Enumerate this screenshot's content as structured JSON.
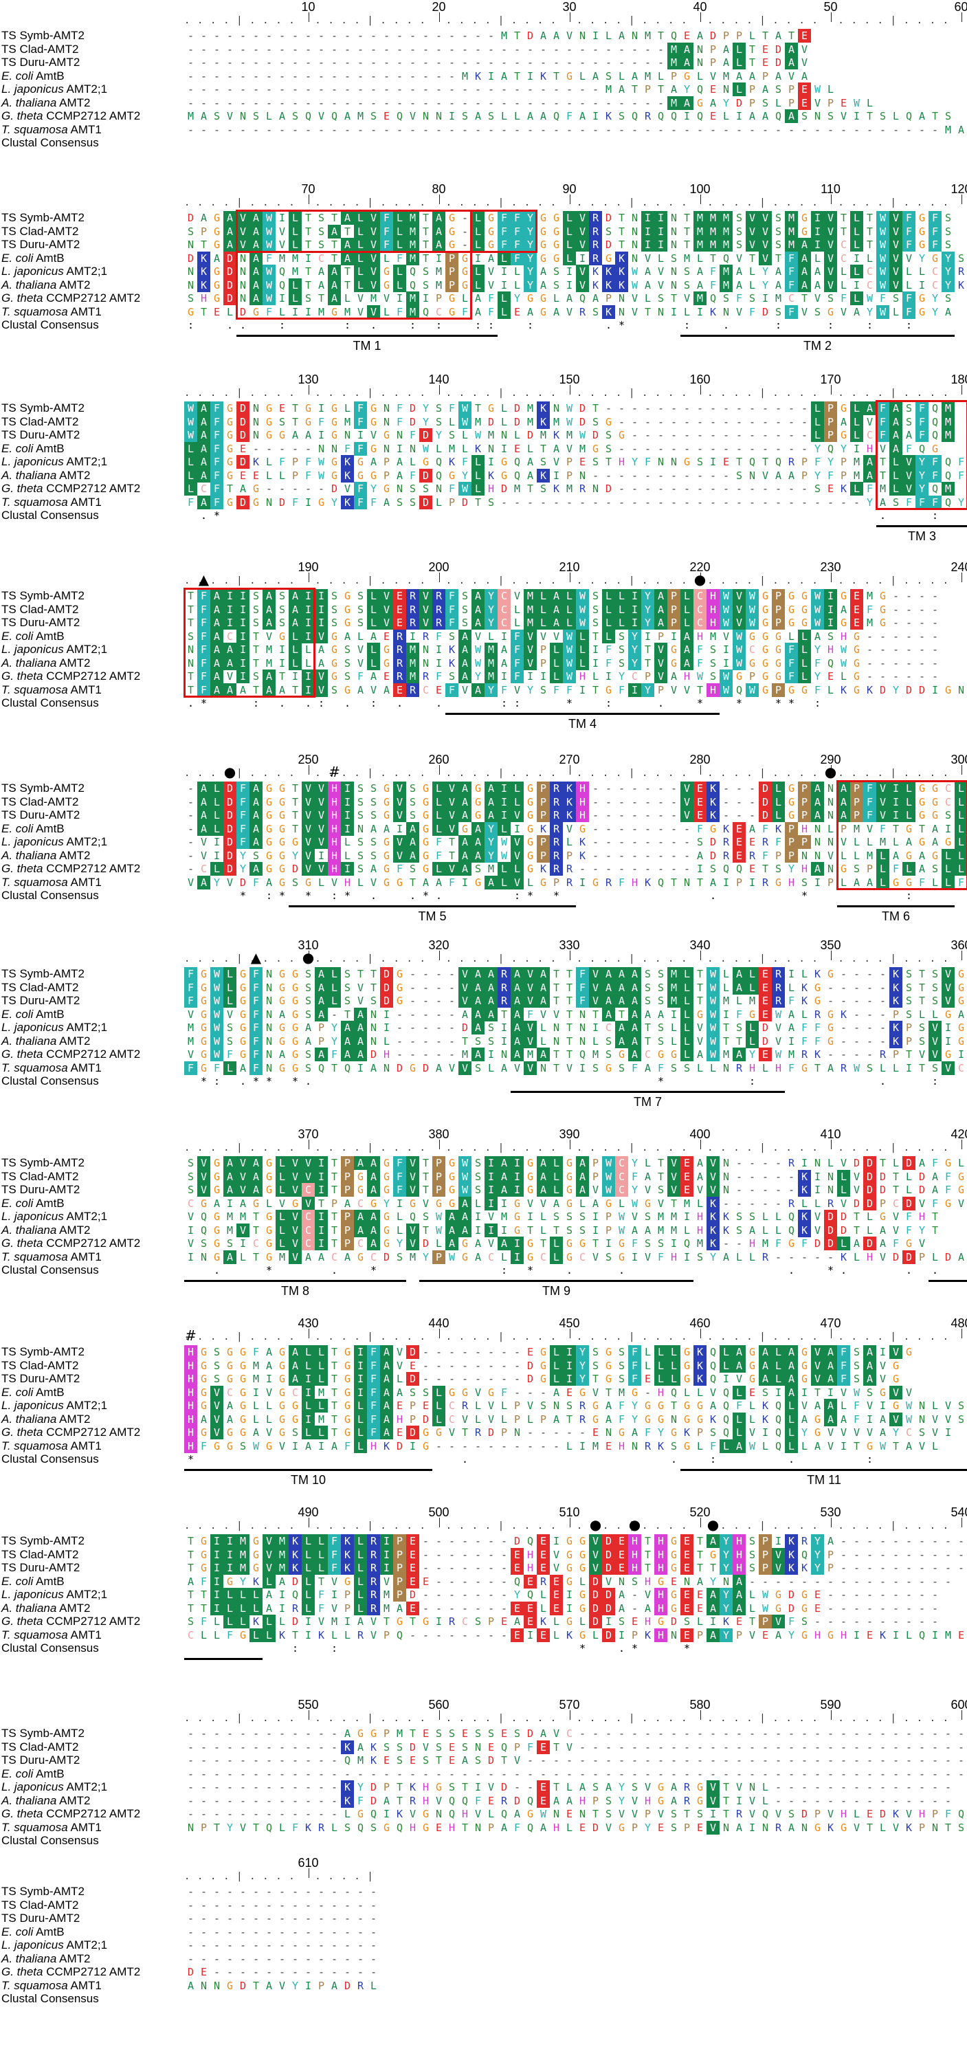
{
  "labels": [
    {
      "pre": "TS Symb-AMT2",
      "it": "",
      "post": ""
    },
    {
      "pre": "TS Clad-AMT2",
      "it": "",
      "post": ""
    },
    {
      "pre": "TS Duru-AMT2",
      "it": "",
      "post": ""
    },
    {
      "pre": "",
      "it": "E. coli",
      "post": " AmtB"
    },
    {
      "pre": "",
      "it": "L. japonicus",
      "post": " AMT2;1"
    },
    {
      "pre": "",
      "it": "A. thaliana",
      "post": " AMT2"
    },
    {
      "pre": "",
      "it": "G. theta",
      "post": " CCMP2712 AMT2"
    },
    {
      "pre": "",
      "it": "T. squamosa",
      "post": " AMT1"
    },
    {
      "pre": "Clustal Consensus",
      "it": "",
      "post": ""
    }
  ],
  "blocks": [
    {
      "start": 1,
      "rows": [
        "------------------------MTDAAVNILANMTQEADPPLTATE",
        "-------------------------------------MANPALTEDAV",
        "-------------------------------------MANPALTEDAV",
        "---------------------MKIATIKTGLASLAMLPGLVMAAPAVA",
        "--------------------------------MATPTAYQENLPASPEWL",
        "-------------------------------------MAGAYDPSLPEVPEWL",
        "MASVNSLASQVQAMSEQVNNISASLLAAQFAIKSQRQQIQELIAAQASNSVITSLQATS",
        "----------------------------------------------------------MAI"
      ],
      "cons": "",
      "marks": [],
      "tm": [],
      "boxes": []
    },
    {
      "start": 61,
      "rows": [
        "DAGAVAWILTSTALVFLMTAG-LGFFYGGLVRDTNIINTMMMSVVSMGIVTLTWVFGFS",
        "SPGAVAWVLTSATLVFLMTAG-LGFFYGGLVRSTNIINTMMMSVVSMGIVTLTWVFGFS",
        "NTGAVAWVLTSTALVFLMTAG-LGFFYGGLVRDTNIINTMMMSVVSMAIVCLTWVFGFS",
        "DKADNAFMMICTALVLFMTIPGIALFYGGLIRGKNVLSMLTQVTVTFALVCILWVVYGYS",
        "NKGDNAWQMTAATLVGLQSMPGLVILYASIVKKKWAVNSAFMALYAFAAVLLCWVLLCYR",
        "NKGDNAWQLTAATLVGLQSMPGLVILYASIVKKKWAVNSAFMALYAFAAVLICWVLICYK",
        "SHGDNAWILSTALVMVIMIPGLAFLYGGLAQAPNVLSTVMQSFSIMCTVSFLWFSFGYS",
        "GTELDGFLIIMGMVVLFMQCGFAFLEAGAVRSKNVTNILIKNVFDSFVSGVAYWLFGYA"
      ],
      "cons": ":  ..  :    : .  : :  ::  :     .*    :  .   :   :  :  :  ",
      "tm": [
        {
          "label": "TM 1",
          "c0": 4,
          "c1": 23
        },
        {
          "label": "TM 2",
          "c0": 38,
          "c1": 58
        }
      ],
      "boxes": [
        {
          "c0": 4,
          "c1": 21,
          "r0": 0,
          "r1": 7
        },
        {
          "c0": 4,
          "c1": 26,
          "r0": 0,
          "r1": 2
        }
      ]
    },
    {
      "start": 121,
      "rows": [
        "WAFGDNGETGIGLFGNFDYSFWTGLDMKNWDT----------------LPGLAFASFQM",
        "WAFGDNGSTGFGMFGNFDYSLWMDLDMKMWDSG---------------LPALVFASFQM",
        "WAFGDNGGAAIGNIVGNFDYSLWMNLDMKMWDSG--------------LPGLCFAAFQM",
        "LAFGE-----NNFFGNINWLMLKNIELTAVMGS---------------YQYIHVAFQG",
        "LAFGDKLFPFWGKGAPALGQKFLIGQASVPESTHYFNNGSIETQTQRPFYPMATLVYFQF",
        "LAFGEELLPFWGKGGPAFDQGYLKGQAKIPN-----------SNVAAPYFPMATLVYFQF",
        "LCFTAG-----DVFYGNSSNFWLHDMTSKMRND---------------SEKLFMLVYQM",
        "FAFGDGNDFIGYKFFASSDLPDTS----------------------------YASFFFQY"
      ],
      "cons": " .*                                                  .   : ",
      "tm": [
        {
          "label": "TM 3",
          "c0": 53,
          "c1": 59
        }
      ],
      "boxes": [
        {
          "c0": 53,
          "c1": 59,
          "r0": 0,
          "r1": 7
        }
      ]
    },
    {
      "start": 181,
      "rows": [
        "TFAIISASAIISGSLVERVRFSAYCVMLALWSLLIYAPLCHWVWGPGGWIGEMG----",
        "TFAIISASAIISGSLVERVRFSAYCLMLALWSLLIYAPLCHWVWGPGGWIAEFG----",
        "TFAIISASAIISGSLVERVRFSAYCLMLALWSLLIYAPLCHWVWGPGGWIGEMG----",
        "SFACITVGLIVGALAERIRFSAVLIFVVVWLTLSYIPIAHMVWGGGLLASHG------",
        "NFAAITMILLAGSVLGRMNIKAWMAFVPLWLIFSYTVGAFSIWCGGFLYHWG------",
        "NFAAITMILLAGSVLGRMNIKAWMAFVPLWLIFSYTVGAFSIWGGGFLFQWG------",
        "TFAVISATIIVGSFAERMRFSAYMIFIILWHLIYCPVAHWSWGPGGFLYELG------",
        "TFAAATAATIVSGAVAERCEFVAYFVYSFFITGFIYPVVTHWQWGPGGFLKGKDYDDIGN"
      ],
      "cons": ".*   : . .: . : .  .    ::   *  :   .  *  *  ** :           ",
      "tm": [
        {
          "label": "TM 4",
          "c0": 20,
          "c1": 40
        }
      ],
      "boxes": [
        {
          "c0": 0,
          "c1": 9,
          "r0": 0,
          "r1": 7
        }
      ]
    },
    {
      "start": 241,
      "rows": [
        "-ALDFAGGTVVHISSGVSGLVAGAILGPRKH-------VEK---DLGPANAPFVILGGCLLW",
        "-ALDFAGGTVVHISSGVSGLVAGAILGPRKH-------VEK---DLGPANAPFVILGGCLLW",
        "-ALDFAGGTVVHISSGVSGLVAGAIVGPRKH-------VEK---DLGPANAPFVILGGSLLW",
        "-ALDFAGGTVVHINAAIAGLVGAYLIGKRVG--------FGKEAFKPHNLPMVFTGTAILY",
        "-VIDFAGGGVVHLSSGVAGFTAAYWVGPRLK--------SDREERFPPNNVLLMLAGAGLLW",
        "-VIDYSGGYVIHLSSGVAGFTAAYWVGPRPK--------ADRERFPPNNVLLMLAGAGLLW",
        "-CLDYAGGDVVHISAGFSGLVASMLLGKRR---------ISQQETSYHANGSPLFLASLLW",
        "VAYVDFAGSGLVHLVGGTAAFIGALVLGPRIGRFHKQTNTAIPIRGHSIPLAALGGFLLF"
      ],
      "cons": "    * :* * :* .  .*.     :* *           .      *       :   ",
      "tm": [
        {
          "label": "TM 5",
          "c0": 8,
          "c1": 29
        },
        {
          "label": "TM 6",
          "c0": 50,
          "c1": 58
        }
      ],
      "boxes": [
        {
          "c0": 50,
          "c1": 59,
          "r0": 0,
          "r1": 7
        }
      ]
    },
    {
      "start": 301,
      "rows": [
        "FGWLGFNGGSALSTTDG----VAARAVATTFVAAASSMLTWLALERILKG----KSTSVGA",
        "FGWLGFNGGSALSVTDG----VAARAVATTFVAAASSMLTWLALERLKG-----KSTSVGA",
        "FGWLGFNGGSALSVSDG----VAARAVATTFVAAASSMLTWMLMERFKG-----KSTSVGA",
        "VGWVGFNAGSA-TANI-----AAATAFVVTNTATAAAILGWIFGEWALRGK---PSLLGAC",
        "MGWSGFNGGAPYAANI-----DASIAVLNTNICAATSLLVWTSLDVAFFG----KPSVIGA",
        "MGWSGFNGGAPYAANL-----TSSIAVLNTNLSAATSLLVWTTLDVIFFG----KPSVIGA",
        "VGWFGFNAGSAFAADH-----MAINAMATTQMSGACGGLAWMAYEWMRK----RPTVVGI",
        "FGFLAFNGGSQTQIANDGDAVVSLAVVNTVISGSFAFSSLLNRHLHFGTARWSLLITSVC"
      ],
      "cons": " *: .** *.                          *      :         .   :   ",
      "tm": [
        {
          "label": "TM 7",
          "c0": 25,
          "c1": 45
        }
      ],
      "boxes": []
    },
    {
      "start": 361,
      "rows": [
        "SVGAVAGLVVITPAAGFVTPGWSIAIGALGAPWCYLTVEAVN----RINLVDDTLDAFGL",
        "SVGAVAGLVVITPGAGFVTPGWSIAIGALGAPWCFATVEAVN-----KINLVDDTLDAFGL",
        "SVGAVAGLVCITPGAGFVTPGWSIAIGALGAVWCYVSVEVVN-----KINLVDDTLDAFGL",
        "CGAIAGLVGVTPACGYIGVGGALIIGVVAGLAGLWGVTMLK-----RLLRVDDPCDVFGV",
        "VQGMMTGLVCITPAAGLQSWAAIVMGILSSSIPWVSMMIHKKSSLLQKVDDTLGVFHT",
        "IQGMVTGLVCITPAAGLVTWAAIIIGTLTSSIPWAAMMLHKKSALLQKVDDTLAVFYT",
        "VSGSICGLVCITPCAGYVDLAGAVAIGTLGGTIGFSSIQMK--HMFGFDDLADAFGV",
        "INGALTGMVAACAGCDSMYPWGACLIGCLGCVSGIVFHISYALLR-----KLHVDDPLDAVAV"
      ],
      "cons": "  .   *    .  *         : *  .   .            .  *.    . .   ",
      "tm": [
        {
          "label": "TM 8",
          "c0": 0,
          "c1": 16
        },
        {
          "label": "TM 9",
          "c0": 18,
          "c1": 38
        },
        {
          "label": "",
          "c0": 57,
          "c1": 59
        }
      ],
      "boxes": []
    },
    {
      "start": 421,
      "rows": [
        "HGSGGFAGALLTGIFAVD--------EGLIYSGSFLLLGKQLAGALAGVAFSAIVG",
        "HGSGGMAGALLTGIFAVE--------DGLIYSGSFLLLGKQLAGALAGVAFSAVG",
        "HGSGGMIGAILTGIFALD--------DGLIYTGSFELLGKQIVGALAGVAFSAVG",
        "HGVCGIVGCIMTGIFAASSLGGVGF---AEGVTMG-HQLLVQLESIAITIVWSGVV",
        "HGVAGLLGGLLTGLFAEPELCRLVLPVSNSRGAFYGGTGGAQFLKQLVAALFVIGWNLVS",
        "HAVAGLLGGIMTGLFAHPDLCVLVLPLPATRGAFYGGNGGKQLLKQLAGAAFIAVWNVVS",
        "HGVGGAVGSLLTGLFAEDGGVTRDPN-----ENGAFYGKPSQLVIQLYGVVVVAYCSVI",
        "HFGGSWGVIAIAFLHKDIG----------LIMEHNRKSGLFLAWLQLLAVITGWTAVL"
      ],
      "cons": "*                    .               .  :     .     :        ",
      "tm": [
        {
          "label": "TM 10",
          "c0": 0,
          "c1": 18
        },
        {
          "label": "TM 11",
          "c0": 38,
          "c1": 59
        }
      ],
      "boxes": []
    },
    {
      "start": 481,
      "rows": [
        "TGIIMGVMKLLFKLRIPE-------DQEIGGVDEHTHGETAYHSPIKRYA----------",
        "TGIIMGVMKLLFKLRIPE-------EHEVGGVDEHTHGETGYHSPVKQYP----------",
        "TGIIMGVMKLLFKLRIPE-------EHEVGGVDEHTHGETTYHSPVKKYP----------",
        "AFIGYKLADLTVGLRVPEE------QEREGLDVNSHGENAYNA----------------",
        "TTILLLAIQLFIPLRMPD-------YQLEIGDDA-VHGEEAYALWGDGE---------",
        "TTILLLAIRLFVPLRMAE-------EELEIGDDA-AHGEEAYALWGDGE---------",
        "SFLLLKLLDIVMIAVTGTGIRCSPEAEKLGLDISEHGDSLIKETPVFS----------",
        "CLLFGLLKTIKLLRVPQ--------EIELKGLDIPKHNEPAYPVEAYGHGHIEKILQIMES"
      ],
      "cons": "        :  :                  *  .*   *                     ",
      "tm": [
        {
          "label": "",
          "c0": 0,
          "c1": 5
        }
      ],
      "boxes": []
    },
    {
      "start": 541,
      "rows": [
        "------------AGGPMTESSESSESDAVC------------------------------",
        "------------KAKSSDVSESNEQPFETV------------------------------",
        "------------QMKESESTEASDTV----------------------------------",
        "------------------------------------------------------------",
        "------------KYDPTKHGSTIVD--ETLASAYSVGARGVTVNL--------------",
        "------------KFDATRHVQQFERDQEAAHPSYVHGARGVTIVL--------------",
        "------------LGQIKVGNQHVLQAGWNENTSVVPVSTSITRVQVSDPVHLEDKVHPFQQ",
        "NPTYVTQLFKRLSQSGQHGEHTNPAFQAHLEDVGPYESPEVNAINRANGKGVTLVKPNTS"
      ],
      "cons": "",
      "tm": [],
      "boxes": []
    },
    {
      "start": 601,
      "rows": [
        "---------------",
        "---------------",
        "---------------",
        "---------------",
        "---------------",
        "---------------",
        "DE-------------",
        "ANNGDTAVYIPADRL"
      ],
      "cons": "",
      "tm": [],
      "boxes": []
    }
  ],
  "markers": [
    {
      "sym": "▲",
      "block": 3,
      "col": 1
    },
    {
      "sym": "●",
      "block": 3,
      "col": 39
    },
    {
      "sym": "●",
      "block": 4,
      "col": 3
    },
    {
      "sym": "#",
      "block": 4,
      "col": 11
    },
    {
      "sym": "●",
      "block": 4,
      "col": 49
    },
    {
      "sym": "▲",
      "block": 5,
      "col": 5
    },
    {
      "sym": "●",
      "block": 5,
      "col": 9
    },
    {
      "sym": "#",
      "block": 7,
      "col": 0
    },
    {
      "sym": "●",
      "block": 8,
      "col": 31
    },
    {
      "sym": "●",
      "block": 8,
      "col": 34
    },
    {
      "sym": "●",
      "block": 8,
      "col": 40
    }
  ],
  "colors": {
    "hydrophobic": "#16874a",
    "aromatic": "#27b4b0",
    "acidic": "#e42b2b",
    "basic": "#2a3fb6",
    "polar": "#8bd3d1",
    "glycine": "#f08a17",
    "proline": "#a97f4a",
    "histidine": "#d93fd6",
    "cysteine": "#f0a0a0",
    "highlight_box": "#e01010"
  }
}
